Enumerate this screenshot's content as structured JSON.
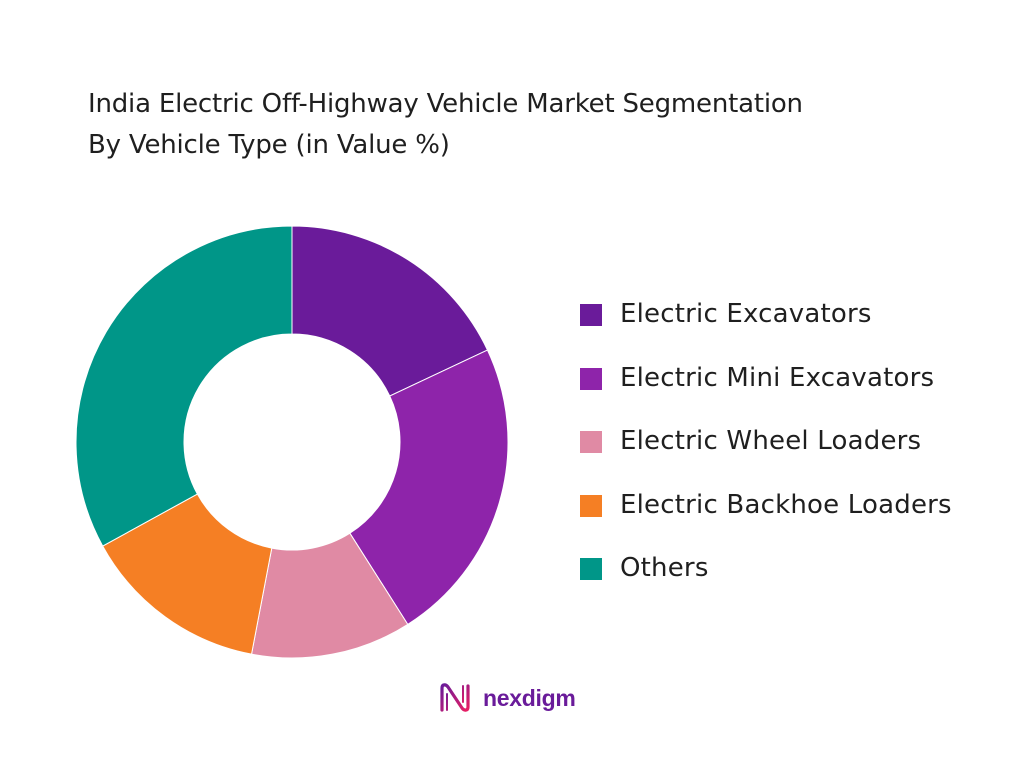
{
  "title_lines": [
    "India Electric Off-Highway Vehicle Market Segmentation",
    "By Vehicle Type (in Value %)"
  ],
  "chart_data": {
    "type": "pie",
    "variant": "donut",
    "title": "India Electric Off-Highway Vehicle Market Segmentation By Vehicle Type (in Value %)",
    "start_angle_deg": 0,
    "direction": "clockwise",
    "legend_position": "right",
    "slices": [
      {
        "label": "Electric Excavators",
        "value": 18,
        "color": "#6a1b9a"
      },
      {
        "label": "Electric Mini Excavators",
        "value": 23,
        "color": "#8e24aa"
      },
      {
        "label": "Electric Wheel Loaders",
        "value": 12,
        "color": "#e08aa4"
      },
      {
        "label": "Electric Backhoe Loaders",
        "value": 14,
        "color": "#f57f24"
      },
      {
        "label": "Others",
        "value": 33,
        "color": "#009688"
      }
    ]
  },
  "brand": {
    "name": "nexdigm",
    "color": "#6a1b9a",
    "icon": "nexdigm-logo-icon"
  }
}
